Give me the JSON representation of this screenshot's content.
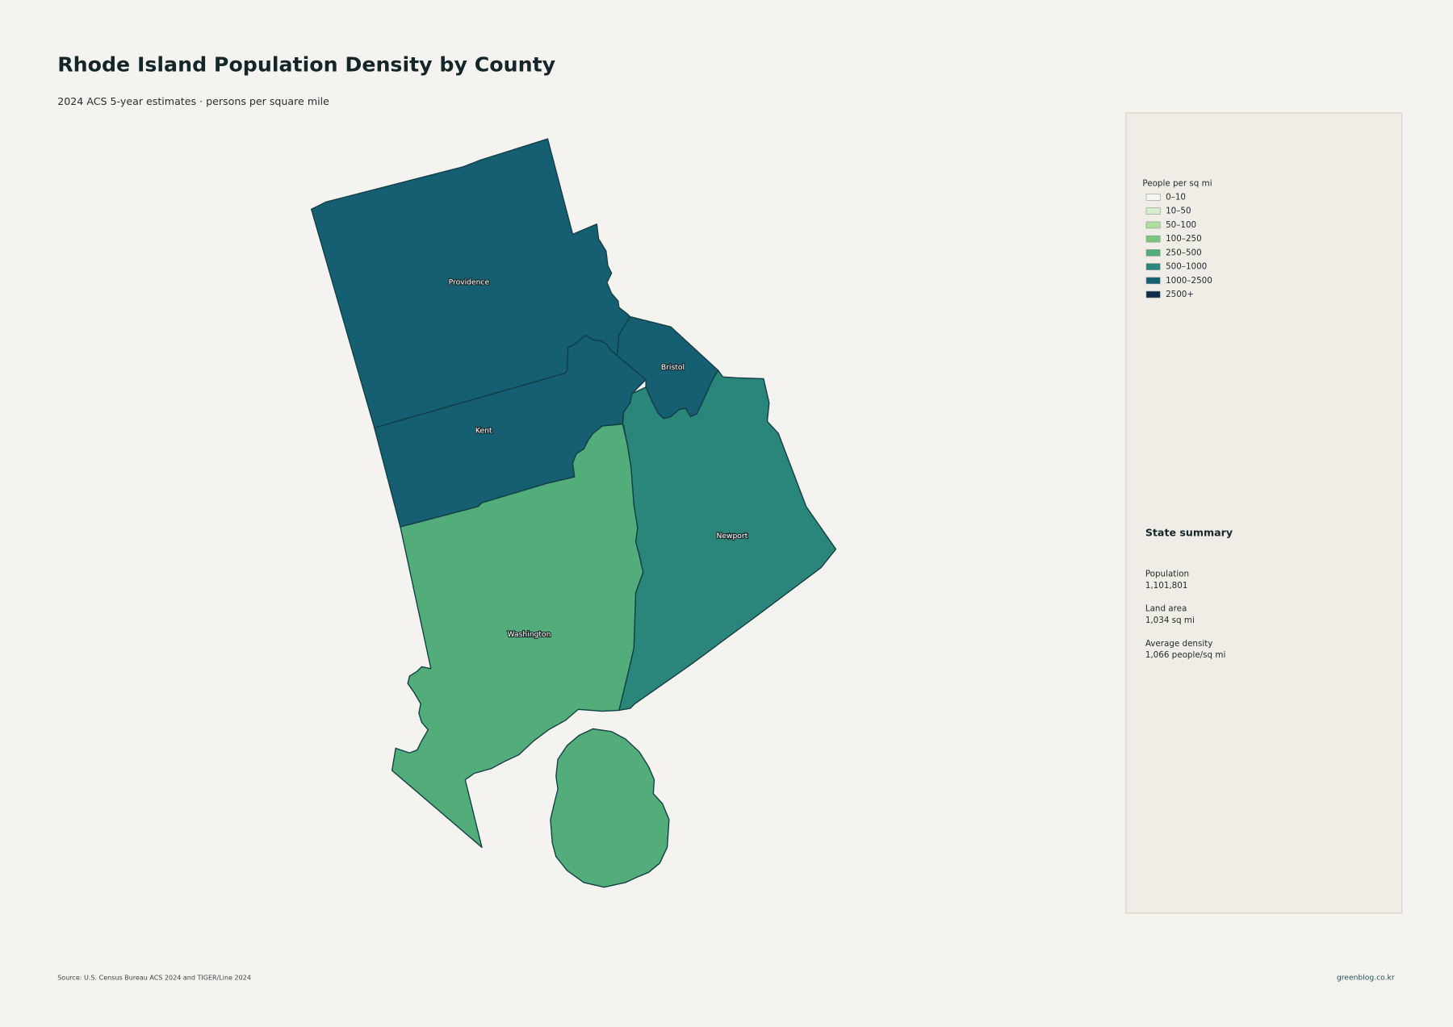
{
  "header": {
    "title": "Rhode Island Population Density by County",
    "subtitle": "2024 ACS 5-year estimates · persons per square mile"
  },
  "counties": [
    {
      "name": "Providence",
      "color": "#165e72"
    },
    {
      "name": "Kent",
      "color": "#165e72"
    },
    {
      "name": "Bristol",
      "color": "#165e72"
    },
    {
      "name": "Newport",
      "color": "#2a857a"
    },
    {
      "name": "Washington",
      "color": "#52ad7b"
    }
  ],
  "legend": {
    "title": "People per sq mi",
    "items": [
      {
        "label": "0–10",
        "color": "#f4f6f0"
      },
      {
        "label": "10–50",
        "color": "#d8efcf"
      },
      {
        "label": "50–100",
        "color": "#afdd9f"
      },
      {
        "label": "100–250",
        "color": "#7cc57f"
      },
      {
        "label": "250–500",
        "color": "#52ad7b"
      },
      {
        "label": "500–1000",
        "color": "#2a857a"
      },
      {
        "label": "1000–2500",
        "color": "#165e72"
      },
      {
        "label": "2500+",
        "color": "#0e2d4e"
      }
    ]
  },
  "summary": {
    "title": "State summary",
    "items": [
      {
        "label": "Population",
        "value": "1,101,801"
      },
      {
        "label": "Land area",
        "value": "1,034 sq mi"
      },
      {
        "label": "Average density",
        "value": "1,066 people/sq mi"
      }
    ]
  },
  "footer": {
    "source": "Source: U.S. Census Bureau ACS 2024 and TIGER/Line 2024",
    "credit": "greenblog.co.kr"
  }
}
